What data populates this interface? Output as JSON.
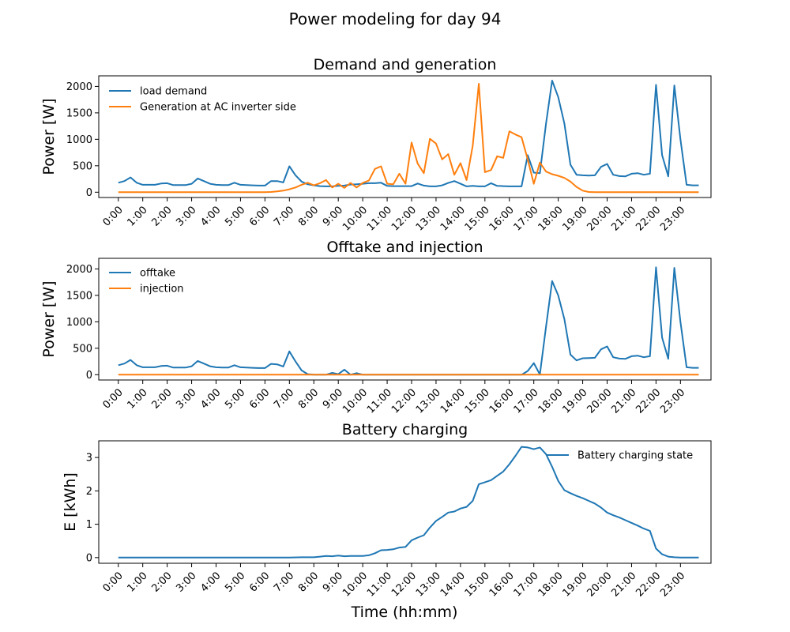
{
  "figure": {
    "title": "Power modeling for day 94",
    "xlabel": "Time (hh:mm)"
  },
  "colors": {
    "blue": "#1f77b4",
    "orange": "#ff7f0e"
  },
  "x_tick_labels": [
    "0:00",
    "1:00",
    "2:00",
    "3:00",
    "4:00",
    "5:00",
    "6:00",
    "7:00",
    "8:00",
    "9:00",
    "10:00",
    "11:00",
    "12:00",
    "13:00",
    "14:00",
    "15:00",
    "16:00",
    "17:00",
    "18:00",
    "19:00",
    "20:00",
    "21:00",
    "22:00",
    "23:00"
  ],
  "chart_data": [
    {
      "type": "line",
      "title": "Demand and generation",
      "ylabel": "Power [W]",
      "xlim": [
        -0.8,
        24.25
      ],
      "ylim": [
        -100,
        2200
      ],
      "yticks": [
        0,
        500,
        1000,
        1500,
        2000
      ],
      "legend": "top-left",
      "series": [
        {
          "name": "load demand",
          "color": "#1f77b4",
          "x": [
            0,
            0.25,
            0.5,
            0.75,
            1,
            1.25,
            1.5,
            1.75,
            2,
            2.25,
            2.5,
            2.75,
            3,
            3.25,
            3.5,
            3.75,
            4,
            4.25,
            4.5,
            4.75,
            5,
            5.25,
            5.5,
            5.75,
            6,
            6.25,
            6.5,
            6.75,
            7,
            7.25,
            7.5,
            7.75,
            8,
            8.25,
            8.5,
            8.75,
            9,
            9.25,
            9.5,
            9.75,
            10,
            10.25,
            10.5,
            10.75,
            11,
            11.25,
            11.5,
            11.75,
            12,
            12.25,
            12.5,
            12.75,
            13,
            13.25,
            13.5,
            13.75,
            14,
            14.25,
            14.5,
            14.75,
            15,
            15.25,
            15.5,
            15.75,
            16,
            16.25,
            16.5,
            16.75,
            17,
            17.25,
            17.5,
            17.75,
            18,
            18.25,
            18.5,
            18.75,
            19,
            19.25,
            19.5,
            19.75,
            20,
            20.25,
            20.5,
            20.75,
            21,
            21.25,
            21.5,
            21.75,
            22,
            22.25,
            22.5,
            22.75,
            23,
            23.25,
            23.5,
            23.75
          ],
          "values": [
            180,
            210,
            280,
            180,
            140,
            140,
            140,
            165,
            170,
            135,
            135,
            135,
            160,
            260,
            210,
            160,
            140,
            135,
            135,
            180,
            140,
            135,
            130,
            125,
            125,
            210,
            210,
            185,
            490,
            320,
            200,
            150,
            130,
            115,
            110,
            110,
            120,
            125,
            145,
            150,
            160,
            170,
            170,
            180,
            120,
            115,
            115,
            115,
            115,
            165,
            125,
            110,
            110,
            130,
            175,
            210,
            160,
            110,
            120,
            110,
            110,
            170,
            120,
            115,
            110,
            110,
            110,
            700,
            370,
            360,
            1300,
            2110,
            1800,
            1300,
            520,
            330,
            320,
            315,
            320,
            480,
            535,
            330,
            305,
            300,
            350,
            360,
            330,
            350,
            2030,
            700,
            300,
            2020,
            1000,
            140,
            130,
            130
          ]
        },
        {
          "name": "Generation at AC inverter side",
          "color": "#ff7f0e",
          "x": [
            0,
            0.25,
            0.5,
            0.75,
            1,
            1.25,
            1.5,
            1.75,
            2,
            2.25,
            2.5,
            2.75,
            3,
            3.25,
            3.5,
            3.75,
            4,
            4.25,
            4.5,
            4.75,
            5,
            5.25,
            5.5,
            5.75,
            6,
            6.25,
            6.5,
            6.75,
            7,
            7.25,
            7.5,
            7.75,
            8,
            8.25,
            8.5,
            8.75,
            9,
            9.25,
            9.5,
            9.75,
            10,
            10.25,
            10.5,
            10.75,
            11,
            11.25,
            11.5,
            11.75,
            12,
            12.25,
            12.5,
            12.75,
            13,
            13.25,
            13.5,
            13.75,
            14,
            14.25,
            14.5,
            14.75,
            15,
            15.25,
            15.5,
            15.75,
            16,
            16.25,
            16.5,
            16.75,
            17,
            17.25,
            17.5,
            17.75,
            18,
            18.25,
            18.5,
            18.75,
            19,
            19.25,
            19.5,
            19.75,
            20,
            20.25,
            20.5,
            20.75,
            21,
            21.25,
            21.5,
            21.75,
            22,
            22.25,
            22.5,
            22.75,
            23,
            23.25,
            23.5,
            23.75
          ],
          "values": [
            0,
            0,
            0,
            0,
            0,
            0,
            0,
            0,
            0,
            0,
            0,
            0,
            0,
            0,
            0,
            0,
            0,
            0,
            0,
            0,
            0,
            0,
            0,
            0,
            0,
            5,
            15,
            30,
            55,
            90,
            140,
            180,
            130,
            170,
            230,
            90,
            160,
            80,
            175,
            90,
            175,
            220,
            440,
            490,
            160,
            150,
            350,
            160,
            940,
            540,
            360,
            1010,
            920,
            620,
            720,
            330,
            550,
            230,
            880,
            2050,
            380,
            420,
            680,
            650,
            1150,
            1090,
            1040,
            620,
            160,
            560,
            390,
            340,
            310,
            270,
            200,
            100,
            30,
            5,
            0,
            0,
            0,
            0,
            0,
            0,
            0,
            0,
            0,
            0,
            0,
            0,
            0,
            0,
            0,
            0,
            0,
            0
          ]
        }
      ]
    },
    {
      "type": "line",
      "title": "Offtake and injection",
      "ylabel": "Power [W]",
      "xlim": [
        -0.8,
        24.25
      ],
      "ylim": [
        -100,
        2200
      ],
      "yticks": [
        0,
        500,
        1000,
        1500,
        2000
      ],
      "legend": "top-left",
      "series": [
        {
          "name": "offtake",
          "color": "#1f77b4",
          "x": [
            0,
            0.25,
            0.5,
            0.75,
            1,
            1.25,
            1.5,
            1.75,
            2,
            2.25,
            2.5,
            2.75,
            3,
            3.25,
            3.5,
            3.75,
            4,
            4.25,
            4.5,
            4.75,
            5,
            5.25,
            5.5,
            5.75,
            6,
            6.25,
            6.5,
            6.75,
            7,
            7.25,
            7.5,
            7.75,
            8,
            8.25,
            8.5,
            8.75,
            9,
            9.25,
            9.5,
            9.75,
            10,
            10.25,
            10.5,
            10.75,
            11,
            11.25,
            11.5,
            11.75,
            12,
            12.25,
            12.5,
            12.75,
            13,
            13.25,
            13.5,
            13.75,
            14,
            14.25,
            14.5,
            14.75,
            15,
            15.25,
            15.5,
            15.75,
            16,
            16.25,
            16.5,
            16.75,
            17,
            17.25,
            17.5,
            17.75,
            18,
            18.25,
            18.5,
            18.75,
            19,
            19.25,
            19.5,
            19.75,
            20,
            20.25,
            20.5,
            20.75,
            21,
            21.25,
            21.5,
            21.75,
            22,
            22.25,
            22.5,
            22.75,
            23,
            23.25,
            23.5,
            23.75
          ],
          "values": [
            180,
            210,
            280,
            180,
            140,
            140,
            140,
            165,
            170,
            135,
            135,
            135,
            160,
            260,
            210,
            160,
            140,
            135,
            135,
            180,
            140,
            135,
            130,
            125,
            125,
            205,
            195,
            155,
            440,
            250,
            80,
            10,
            0,
            0,
            0,
            35,
            10,
            95,
            0,
            30,
            0,
            0,
            0,
            0,
            0,
            0,
            0,
            0,
            0,
            0,
            0,
            0,
            0,
            0,
            0,
            0,
            0,
            0,
            0,
            0,
            0,
            0,
            0,
            0,
            0,
            0,
            0,
            70,
            220,
            5,
            910,
            1770,
            1500,
            1050,
            380,
            270,
            310,
            315,
            320,
            480,
            535,
            330,
            305,
            300,
            350,
            360,
            330,
            350,
            2030,
            700,
            300,
            2020,
            1000,
            140,
            130,
            130
          ]
        },
        {
          "name": "injection",
          "color": "#ff7f0e",
          "x": [
            0,
            23.75
          ],
          "values": [
            0,
            0
          ]
        }
      ]
    },
    {
      "type": "line",
      "title": "Battery charging",
      "ylabel": "E [kWh]",
      "xlim": [
        -0.8,
        24.25
      ],
      "ylim": [
        -0.17,
        3.5
      ],
      "yticks": [
        0,
        1,
        2,
        3
      ],
      "legend": "top-right",
      "series": [
        {
          "name": "Battery charging state",
          "color": "#1f77b4",
          "x": [
            0,
            1,
            2,
            3,
            4,
            5,
            6,
            7,
            7.5,
            8,
            8.25,
            8.5,
            8.75,
            9,
            9.25,
            9.5,
            9.75,
            10,
            10.25,
            10.5,
            10.75,
            11,
            11.25,
            11.5,
            11.75,
            12,
            12.25,
            12.5,
            12.75,
            13,
            13.25,
            13.5,
            13.75,
            14,
            14.25,
            14.5,
            14.75,
            15,
            15.25,
            15.5,
            15.75,
            16,
            16.25,
            16.5,
            16.75,
            17,
            17.25,
            17.5,
            17.75,
            18,
            18.25,
            18.5,
            18.75,
            19,
            19.25,
            19.5,
            19.75,
            20,
            20.25,
            20.5,
            20.75,
            21,
            21.25,
            21.5,
            21.75,
            22,
            22.25,
            22.5,
            22.75,
            23,
            23.25,
            23.5,
            23.75
          ],
          "values": [
            0,
            0,
            0,
            0,
            0,
            0,
            0,
            0,
            0.01,
            0.01,
            0.03,
            0.05,
            0.04,
            0.06,
            0.04,
            0.05,
            0.05,
            0.05,
            0.07,
            0.13,
            0.22,
            0.23,
            0.25,
            0.3,
            0.32,
            0.52,
            0.6,
            0.67,
            0.9,
            1.1,
            1.22,
            1.35,
            1.38,
            1.47,
            1.52,
            1.7,
            2.2,
            2.26,
            2.32,
            2.45,
            2.58,
            2.8,
            3.05,
            3.32,
            3.3,
            3.25,
            3.3,
            3.1,
            2.72,
            2.3,
            2.02,
            1.93,
            1.85,
            1.78,
            1.7,
            1.62,
            1.5,
            1.35,
            1.27,
            1.2,
            1.12,
            1.04,
            0.96,
            0.87,
            0.8,
            0.27,
            0.1,
            0.03,
            0.01,
            0,
            0,
            0,
            0
          ]
        }
      ]
    }
  ]
}
